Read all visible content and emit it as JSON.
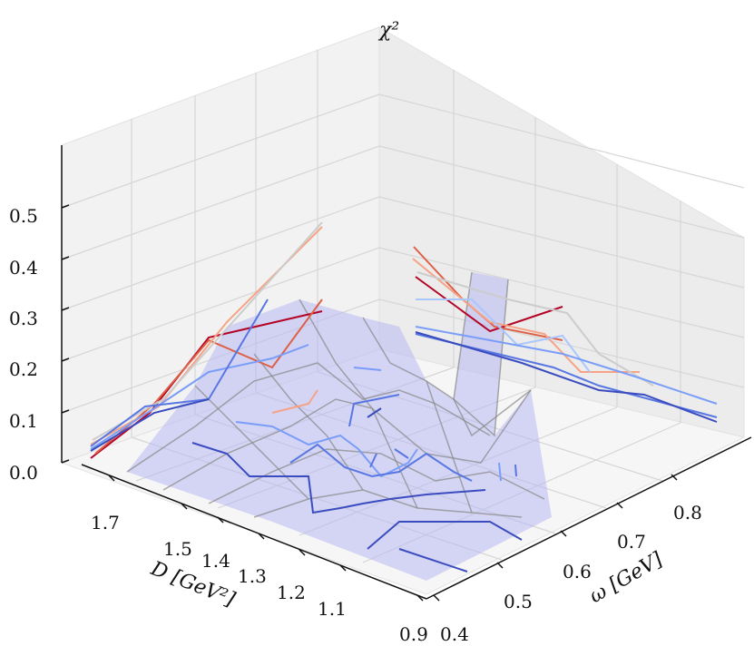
{
  "chart_data": {
    "type": "surface3d",
    "title": "",
    "zlabel": "χ²",
    "xlabel": "D [GeV²]",
    "ylabel": "ω [GeV]",
    "zlim": [
      0.0,
      0.6
    ],
    "z_ticks": [
      "0.0",
      "0.1",
      "0.2",
      "0.3",
      "0.4",
      "0.5"
    ],
    "x_ticks": [
      "1.7",
      "1.5",
      "1.4",
      "1.3",
      "1.2",
      "1.1",
      "0.9"
    ],
    "y_ticks": [
      "0.4",
      "0.5",
      "0.6",
      "0.7",
      "0.8"
    ],
    "grid": true,
    "surface_color": "#b8b8f2",
    "contour_colormap": "coolwarm"
  }
}
